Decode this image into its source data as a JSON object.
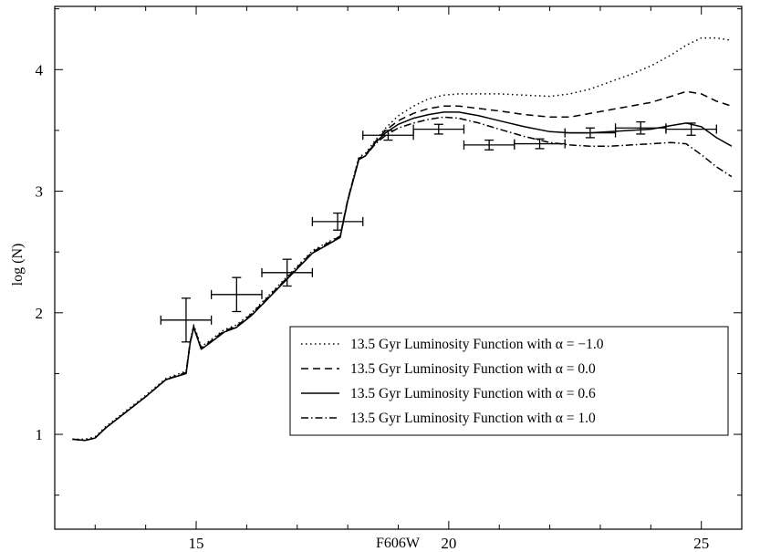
{
  "chart_data": {
    "type": "line",
    "xlabel": "F606W",
    "ylabel": "log (N)",
    "xlim": [
      12.2,
      25.8
    ],
    "ylim": [
      0.22,
      4.52
    ],
    "x_ticks": [
      15,
      20,
      25
    ],
    "x_tick_labels": [
      "15",
      "20",
      "25"
    ],
    "y_ticks": [
      1,
      2,
      3,
      4
    ],
    "y_tick_labels": [
      "1",
      "2",
      "3",
      "4"
    ],
    "x_minor_step": 1,
    "y_minor_step": 0.5,
    "grid": false,
    "legend_placement": "lower-right",
    "legend": [
      {
        "text": "13.5 Gyr Luminosity Function with α = −1.0",
        "dash": "1.5,3.5"
      },
      {
        "text": "13.5 Gyr Luminosity Function with α = 0.0",
        "dash": "8,5"
      },
      {
        "text": "13.5 Gyr Luminosity Function with α = 0.6",
        "dash": ""
      },
      {
        "text": "13.5 Gyr Luminosity Function with α = 1.0",
        "dash": "8,3,1.5,3"
      }
    ],
    "series": [
      {
        "name": "13.5 Gyr Luminosity Function with α = −1.0",
        "dash": "1.5,3.5",
        "x": [
          12.55,
          12.8,
          13.0,
          13.2,
          13.6,
          14.0,
          14.4,
          14.8,
          14.88,
          14.95,
          15.1,
          15.3,
          15.55,
          15.8,
          16.1,
          16.5,
          16.9,
          17.3,
          17.6,
          17.85,
          18.0,
          18.22,
          18.35,
          18.55,
          18.75,
          19.0,
          19.3,
          19.6,
          19.9,
          20.2,
          20.6,
          21.0,
          21.5,
          22.0,
          22.4,
          22.8,
          23.2,
          23.6,
          24.0,
          24.4,
          24.7,
          25.0,
          25.3,
          25.6
        ],
        "y": [
          0.96,
          0.96,
          0.98,
          1.06,
          1.19,
          1.32,
          1.46,
          1.52,
          1.76,
          1.9,
          1.72,
          1.78,
          1.86,
          1.9,
          2.0,
          2.17,
          2.34,
          2.51,
          2.58,
          2.63,
          2.93,
          3.28,
          3.31,
          3.42,
          3.52,
          3.62,
          3.7,
          3.76,
          3.79,
          3.8,
          3.8,
          3.8,
          3.79,
          3.78,
          3.8,
          3.84,
          3.9,
          3.96,
          4.03,
          4.12,
          4.2,
          4.26,
          4.26,
          4.24
        ]
      },
      {
        "name": "13.5 Gyr Luminosity Function with α = 0.0",
        "dash": "8,5",
        "x": [
          12.55,
          12.8,
          13.0,
          13.2,
          13.6,
          14.0,
          14.4,
          14.8,
          14.88,
          14.95,
          15.1,
          15.3,
          15.55,
          15.8,
          16.1,
          16.5,
          16.9,
          17.3,
          17.6,
          17.85,
          18.0,
          18.22,
          18.35,
          18.55,
          18.75,
          19.0,
          19.3,
          19.6,
          19.9,
          20.2,
          20.6,
          21.0,
          21.5,
          22.0,
          22.4,
          22.8,
          23.2,
          23.6,
          24.0,
          24.4,
          24.7,
          25.0,
          25.3,
          25.6
        ],
        "y": [
          0.96,
          0.95,
          0.97,
          1.05,
          1.18,
          1.31,
          1.45,
          1.51,
          1.76,
          1.89,
          1.71,
          1.77,
          1.85,
          1.89,
          1.99,
          2.16,
          2.33,
          2.5,
          2.57,
          2.63,
          2.93,
          3.27,
          3.3,
          3.41,
          3.5,
          3.58,
          3.64,
          3.68,
          3.7,
          3.7,
          3.68,
          3.66,
          3.63,
          3.61,
          3.61,
          3.64,
          3.67,
          3.7,
          3.73,
          3.78,
          3.82,
          3.8,
          3.74,
          3.7
        ]
      },
      {
        "name": "13.5 Gyr Luminosity Function with α = 0.6",
        "dash": "",
        "x": [
          12.55,
          12.8,
          13.0,
          13.2,
          13.6,
          14.0,
          14.4,
          14.8,
          14.88,
          14.95,
          15.1,
          15.3,
          15.55,
          15.8,
          16.1,
          16.5,
          16.9,
          17.3,
          17.6,
          17.85,
          18.0,
          18.22,
          18.35,
          18.55,
          18.75,
          19.0,
          19.3,
          19.6,
          19.9,
          20.2,
          20.6,
          21.0,
          21.5,
          22.0,
          22.4,
          22.8,
          23.2,
          23.6,
          24.0,
          24.4,
          24.7,
          25.0,
          25.3,
          25.6
        ],
        "y": [
          0.96,
          0.95,
          0.97,
          1.05,
          1.18,
          1.31,
          1.45,
          1.5,
          1.75,
          1.88,
          1.7,
          1.76,
          1.84,
          1.88,
          1.98,
          2.15,
          2.32,
          2.49,
          2.56,
          2.62,
          2.92,
          3.26,
          3.29,
          3.4,
          3.48,
          3.55,
          3.6,
          3.63,
          3.65,
          3.65,
          3.62,
          3.58,
          3.53,
          3.49,
          3.48,
          3.48,
          3.49,
          3.5,
          3.51,
          3.54,
          3.56,
          3.53,
          3.44,
          3.37
        ]
      },
      {
        "name": "13.5 Gyr Luminosity Function with α = 1.0",
        "dash": "8,3,1.5,3",
        "x": [
          12.55,
          12.8,
          13.0,
          13.2,
          13.6,
          14.0,
          14.4,
          14.8,
          14.88,
          14.95,
          15.1,
          15.3,
          15.55,
          15.8,
          16.1,
          16.5,
          16.9,
          17.3,
          17.6,
          17.85,
          18.0,
          18.22,
          18.35,
          18.55,
          18.75,
          19.0,
          19.3,
          19.6,
          19.9,
          20.2,
          20.6,
          21.0,
          21.5,
          22.0,
          22.4,
          22.8,
          23.2,
          23.6,
          24.0,
          24.4,
          24.7,
          25.0,
          25.3,
          25.6
        ],
        "y": [
          0.96,
          0.95,
          0.97,
          1.05,
          1.18,
          1.31,
          1.45,
          1.5,
          1.75,
          1.88,
          1.7,
          1.76,
          1.84,
          1.88,
          1.98,
          2.15,
          2.32,
          2.49,
          2.56,
          2.62,
          2.92,
          3.26,
          3.29,
          3.39,
          3.46,
          3.52,
          3.56,
          3.59,
          3.61,
          3.6,
          3.56,
          3.51,
          3.45,
          3.4,
          3.38,
          3.37,
          3.37,
          3.38,
          3.39,
          3.4,
          3.39,
          3.3,
          3.2,
          3.12
        ]
      }
    ],
    "observed": {
      "x": [
        14.8,
        15.8,
        16.8,
        17.8,
        18.8,
        19.8,
        20.8,
        21.8,
        22.8,
        23.8,
        24.8
      ],
      "y": [
        1.94,
        2.15,
        2.33,
        2.75,
        3.46,
        3.51,
        3.38,
        3.39,
        3.48,
        3.52,
        3.51
      ],
      "y_err": [
        0.18,
        0.14,
        0.11,
        0.07,
        0.04,
        0.04,
        0.04,
        0.04,
        0.04,
        0.05,
        0.05
      ],
      "x_err": 0.5
    }
  }
}
